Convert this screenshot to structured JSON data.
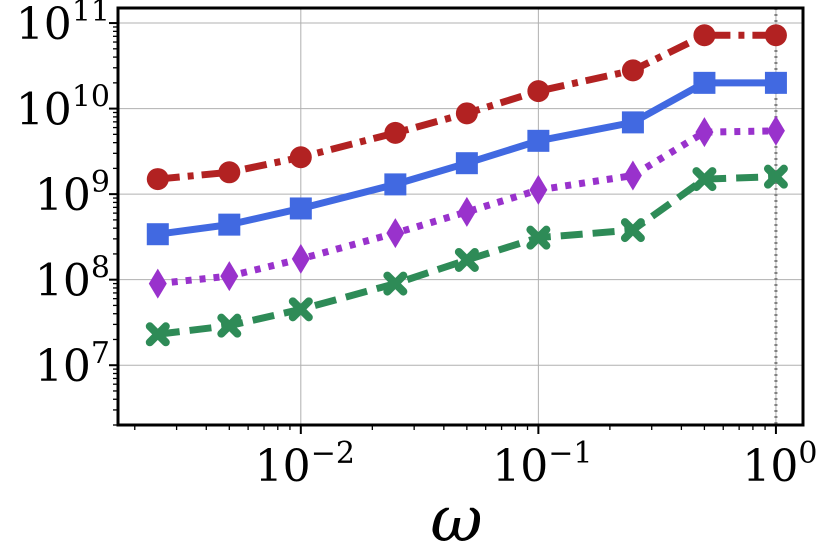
{
  "chart_data": {
    "type": "line",
    "title": "",
    "xlabel": "ω",
    "ylabel": "",
    "xscale": "log",
    "yscale": "log",
    "xlim": [
      0.0017,
      1.3
    ],
    "ylim": [
      2000000,
      150000000000
    ],
    "grid": true,
    "x_ticks": [
      {
        "value": 0.01,
        "base": "10",
        "exp": "−2"
      },
      {
        "value": 0.1,
        "base": "10",
        "exp": "−1"
      },
      {
        "value": 1,
        "base": "10",
        "exp": "0"
      }
    ],
    "y_ticks": [
      {
        "value": 10000000,
        "base": "10",
        "exp": "7"
      },
      {
        "value": 100000000,
        "base": "10",
        "exp": "8"
      },
      {
        "value": 1000000000,
        "base": "10",
        "exp": "9"
      },
      {
        "value": 10000000000,
        "base": "10",
        "exp": "10"
      },
      {
        "value": 100000000000,
        "base": "10",
        "exp": "11"
      }
    ],
    "vline": {
      "x": 1,
      "style": "dotted",
      "color": "#808080"
    },
    "x": [
      0.0025,
      0.005,
      0.01,
      0.025,
      0.05,
      0.1,
      0.25,
      0.5,
      1
    ],
    "series": [
      {
        "color": "#b22222",
        "marker": "circle",
        "dash": "dashdot",
        "values": [
          1500000000,
          1800000000,
          2700000000,
          5200000000,
          8800000000,
          16000000000,
          28000000000,
          72000000000,
          72000000000
        ]
      },
      {
        "color": "#4169e1",
        "marker": "square",
        "dash": "solid",
        "values": [
          340000000,
          440000000,
          680000000,
          1300000000,
          2300000000,
          4200000000,
          6900000000,
          20000000000,
          20000000000
        ]
      },
      {
        "color": "#9932cc",
        "marker": "diamond",
        "dash": "dotted",
        "values": [
          90000000,
          110000000,
          175000000,
          350000000,
          620000000,
          1120000000,
          1650000000,
          5300000000,
          5500000000
        ]
      },
      {
        "color": "#2e8b57",
        "marker": "x",
        "dash": "dashed",
        "values": [
          23000000,
          29000000,
          45000000,
          90000000,
          170000000,
          310000000,
          380000000,
          1500000000,
          1600000000
        ]
      }
    ]
  }
}
